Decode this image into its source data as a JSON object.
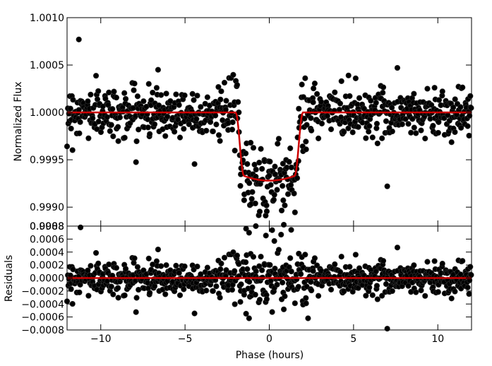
{
  "chart_data": [
    {
      "type": "scatter",
      "panel": "top",
      "ylabel": "Normalized Flux",
      "xlabel": "",
      "xlim": [
        -12,
        12
      ],
      "ylim": [
        0.9988,
        1.001
      ],
      "yticks": [
        "1.0010",
        "1.0005",
        "1.0000",
        "0.9995",
        "0.9990",
        "0.9988"
      ],
      "grid": false,
      "model": {
        "name": "",
        "color": "#cc0000",
        "baseline": 1.0,
        "depth": 0.00072,
        "ingress_start": -2.0,
        "ingress_end": -1.5,
        "egress_start": 1.5,
        "egress_end": 2.0
      },
      "outliers": [
        {
          "x": -11.3,
          "y": 1.00077
        },
        {
          "x": -6.6,
          "y": 1.00045
        },
        {
          "x": 7.6,
          "y": 1.00047
        },
        {
          "x": 4.7,
          "y": 1.00039
        },
        {
          "x": 7.0,
          "y": 0.99922
        },
        {
          "x": -1.2,
          "y": 0.99873
        },
        {
          "x": -0.2,
          "y": 0.9987
        },
        {
          "x": 0.7,
          "y": 0.99871
        },
        {
          "x": 1.3,
          "y": 0.99876
        },
        {
          "x": -0.8,
          "y": 0.9988
        }
      ],
      "noise_sigma": 0.00013,
      "n_points": 760,
      "marker_color": "#000000"
    },
    {
      "type": "scatter",
      "panel": "bottom",
      "ylabel": "Residuals",
      "xlabel": "Phase (hours)",
      "xlim": [
        -12,
        12
      ],
      "ylim": [
        -0.0008,
        0.0008
      ],
      "yticks": [
        "0.0008",
        "0.0006",
        "0.0004",
        "0.0002",
        "0.0000",
        "−0.0002",
        "−0.0004",
        "−0.0006",
        "−0.0008"
      ],
      "xticks": [
        -10,
        -5,
        0,
        5,
        10
      ],
      "xticklabels": [
        "−10",
        "−5",
        "0",
        "5",
        "10"
      ],
      "grid": false,
      "zero_line_color": "#cc0000",
      "outliers": [
        {
          "x": -11.2,
          "y": 0.00078
        },
        {
          "x": 7.0,
          "y": -0.00078
        },
        {
          "x": -1.2,
          "y": -0.00062
        },
        {
          "x": 2.3,
          "y": -0.00062
        },
        {
          "x": 0.3,
          "y": 0.00057
        },
        {
          "x": 7.6,
          "y": 0.00047
        },
        {
          "x": -6.6,
          "y": 0.00044
        }
      ],
      "noise_sigma": 0.00013,
      "n_points": 760,
      "marker_color": "#000000"
    }
  ]
}
